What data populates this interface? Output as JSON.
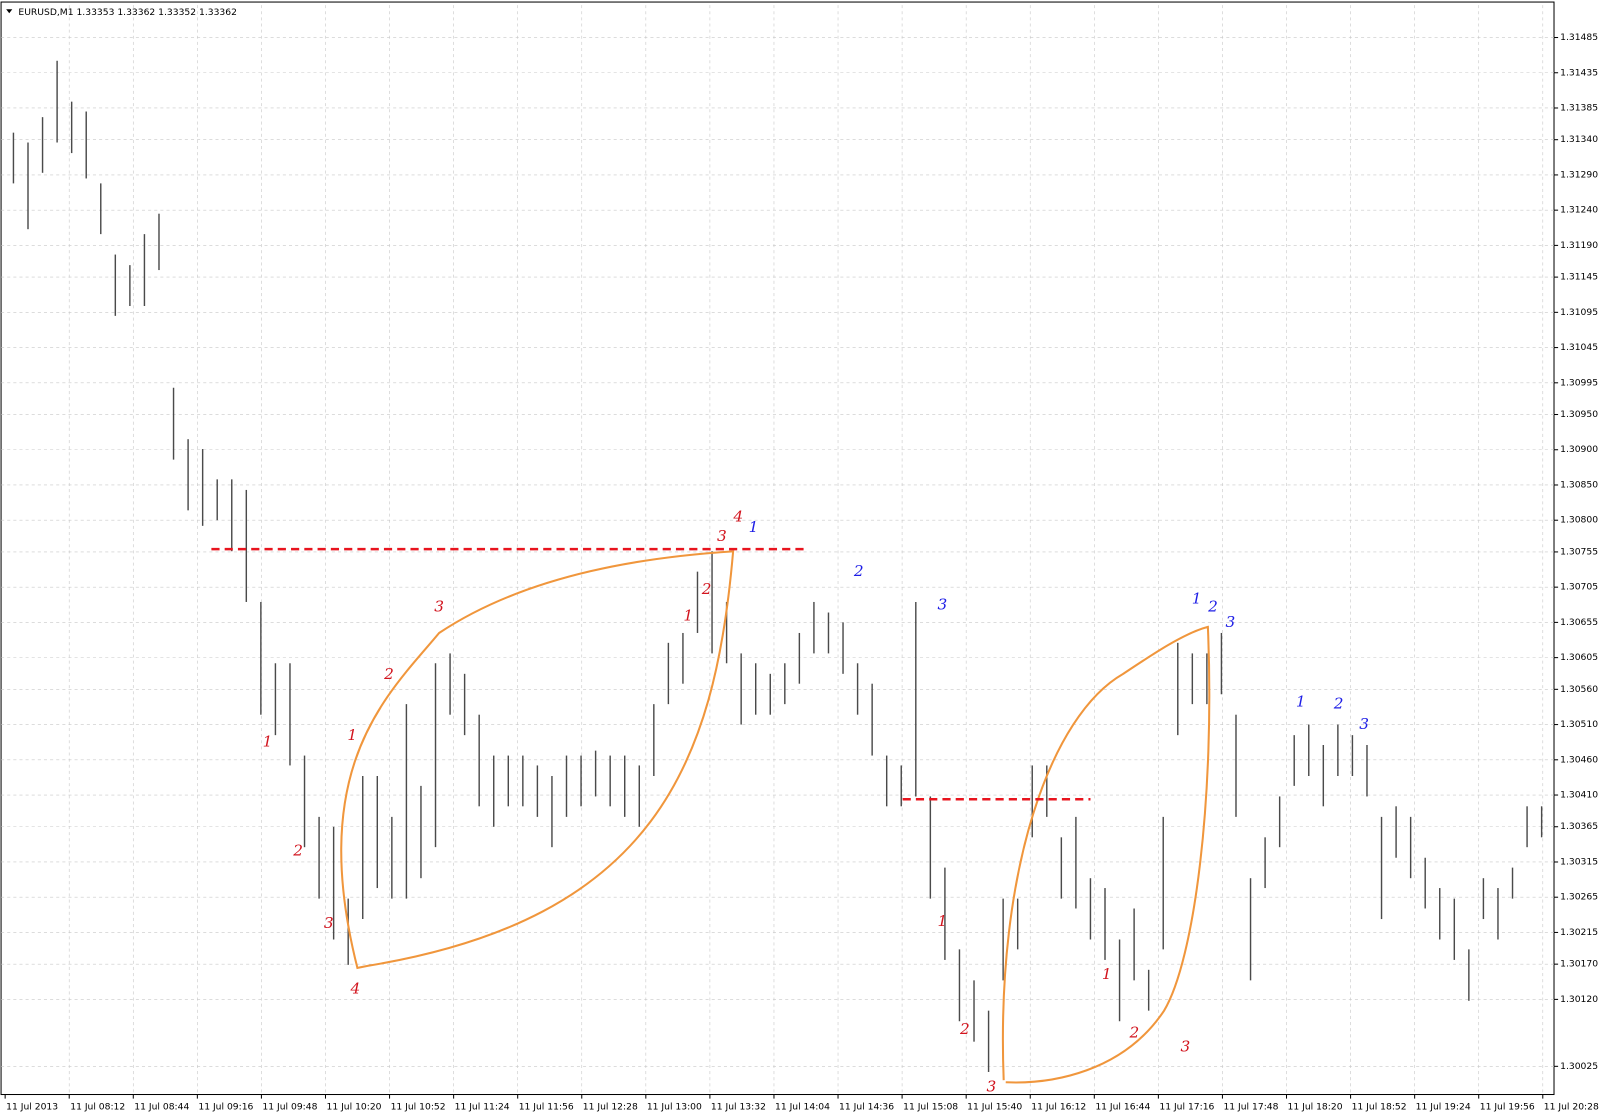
{
  "chart_data": {
    "type": "ohlc",
    "title": "EURUSD,M1  1.33353 1.33362 1.33352 1.33362",
    "color": "#4a4a4a",
    "grid": true,
    "ylim": [
      1.29985,
      1.31531
    ],
    "yticks": [
      1.31485,
      1.31435,
      1.31385,
      {
        "value": 1.3134,
        "label": "1.31340"
      },
      {
        "value": 1.3129,
        "label": "1.31290"
      },
      {
        "value": 1.3124,
        "label": "1.31240"
      },
      {
        "value": 1.3119,
        "label": "1.31190"
      },
      1.31145,
      1.31095,
      1.31045,
      1.30995,
      {
        "value": 1.3095,
        "label": "1.30950"
      },
      {
        "value": 1.309,
        "label": "1.30900"
      },
      {
        "value": 1.3085,
        "label": "1.30850"
      },
      {
        "value": 1.308,
        "label": "1.30800"
      },
      1.30755,
      1.30705,
      1.30655,
      1.30605,
      {
        "value": 1.3056,
        "label": "1.30560"
      },
      {
        "value": 1.3051,
        "label": "1.30510"
      },
      {
        "value": 1.3046,
        "label": "1.30460"
      },
      {
        "value": 1.3041,
        "label": "1.30410"
      },
      1.30365,
      1.30315,
      1.30265,
      1.30215,
      {
        "value": 1.3017,
        "label": "1.30170"
      },
      {
        "value": 1.3012,
        "label": "1.30120"
      },
      1.30025
    ],
    "xticks": [
      "11 Jul 2013",
      "11 Jul 08:12",
      "11 Jul 08:44",
      "11 Jul 09:16",
      "11 Jul 09:48",
      "11 Jul 10:20",
      "11 Jul 10:52",
      "11 Jul 11:24",
      "11 Jul 11:56",
      "11 Jul 12:28",
      "11 Jul 13:00",
      "11 Jul 13:32",
      "11 Jul 14:04",
      "11 Jul 14:36",
      "11 Jul 15:08",
      "11 Jul 15:40",
      "11 Jul 16:12",
      "11 Jul 16:44",
      "11 Jul 17:16",
      "11 Jul 17:48",
      "11 Jul 18:20",
      "11 Jul 18:52",
      "11 Jul 19:24",
      "11 Jul 19:56",
      "11 Jul 20:28"
    ],
    "high": [
      1.3135,
      1.31336,
      1.31372,
      1.31452,
      1.31394,
      1.3138,
      1.31278,
      1.31177,
      1.31162,
      1.31206,
      1.31235,
      1.30988,
      1.30915,
      1.30901,
      1.30858,
      1.30858,
      1.30843,
      1.30684,
      1.30597,
      1.30597,
      1.30466,
      1.30379,
      1.30365,
      1.30263,
      1.30437,
      1.30437,
      1.30379,
      1.30539,
      1.30423,
      1.30597,
      1.30611,
      1.30582,
      1.30524,
      1.30466,
      1.30466,
      1.30466,
      1.30452,
      1.30437,
      1.30466,
      1.30466,
      1.30473,
      1.30466,
      1.30466,
      1.30452,
      1.30539,
      1.30626,
      1.3064,
      1.30727,
      1.30756,
      1.30684,
      1.30611,
      1.30597,
      1.30582,
      1.30597,
      1.3064,
      1.30684,
      1.30669,
      1.30655,
      1.30597,
      1.30568,
      1.30466,
      1.30452,
      1.30684,
      1.30408,
      1.30307,
      1.30191,
      1.30147,
      1.30104,
      1.30263,
      1.30263,
      1.30452,
      1.30452,
      1.3035,
      1.30379,
      1.30292,
      1.30278,
      1.30205,
      1.30249,
      1.30162,
      1.30379,
      1.30626,
      1.30611,
      1.30611,
      1.3064,
      1.30524,
      1.30292,
      1.3035,
      1.30408,
      1.30495,
      1.3051,
      1.30481,
      1.3051,
      1.30495,
      1.30481,
      1.30379,
      1.30394,
      1.30379,
      1.30321,
      1.30278,
      1.30263,
      1.30191,
      1.30292,
      1.30278,
      1.30307,
      1.30394,
      1.30394
    ],
    "low": [
      1.31278,
      1.31213,
      1.31293,
      1.31336,
      1.31321,
      1.31285,
      1.31206,
      1.3109,
      1.31104,
      1.31104,
      1.31155,
      1.30886,
      1.30814,
      1.30792,
      1.308,
      1.30756,
      1.30684,
      1.30524,
      1.30495,
      1.30452,
      1.30336,
      1.30263,
      1.30205,
      1.30169,
      1.30234,
      1.30278,
      1.30263,
      1.30263,
      1.30292,
      1.30336,
      1.30524,
      1.30495,
      1.30394,
      1.30365,
      1.30394,
      1.30394,
      1.30379,
      1.30336,
      1.30379,
      1.30394,
      1.30408,
      1.30394,
      1.30379,
      1.30365,
      1.30437,
      1.30539,
      1.30568,
      1.3064,
      1.30611,
      1.30597,
      1.3051,
      1.30524,
      1.30524,
      1.30539,
      1.30568,
      1.30611,
      1.30611,
      1.30582,
      1.30524,
      1.30466,
      1.30394,
      1.30394,
      1.30408,
      1.30263,
      1.30176,
      1.30089,
      1.3006,
      1.30017,
      1.30147,
      1.30191,
      1.3035,
      1.30379,
      1.30263,
      1.30249,
      1.30205,
      1.30176,
      1.30089,
      1.30147,
      1.30104,
      1.30191,
      1.30495,
      1.30539,
      1.30539,
      1.30553,
      1.30379,
      1.30147,
      1.30278,
      1.30336,
      1.30423,
      1.30437,
      1.30394,
      1.30437,
      1.30437,
      1.30408,
      1.30234,
      1.30321,
      1.30292,
      1.30249,
      1.30205,
      1.30176,
      1.30118,
      1.30234,
      1.30205,
      1.30263,
      1.30336,
      1.3035
    ],
    "levels": [
      {
        "value": 1.30759,
        "color": "#e8141e"
      },
      {
        "value": 1.30404,
        "color": "#e8141e"
      }
    ],
    "annotations": [
      {
        "text": "1",
        "color": "#d2141e"
      },
      {
        "text": "2",
        "color": "#d2141e"
      },
      {
        "text": "3",
        "color": "#d2141e"
      },
      {
        "text": "4",
        "color": "#d2141e"
      },
      {
        "text": "1",
        "color": "#d2141e"
      },
      {
        "text": "2",
        "color": "#d2141e"
      },
      {
        "text": "3",
        "color": "#d2141e"
      },
      {
        "text": "1",
        "color": "#d2141e"
      },
      {
        "text": "2",
        "color": "#d2141e"
      },
      {
        "text": "3",
        "color": "#d2141e"
      },
      {
        "text": "4",
        "color": "#d2141e"
      },
      {
        "text": "1",
        "color": "#1e1ee6"
      },
      {
        "text": "2",
        "color": "#1e1ee6"
      },
      {
        "text": "3",
        "color": "#1e1ee6"
      },
      {
        "text": "1",
        "color": "#d2141e"
      },
      {
        "text": "2",
        "color": "#d2141e"
      },
      {
        "text": "3",
        "color": "#d2141e"
      },
      {
        "text": "1",
        "color": "#d2141e"
      },
      {
        "text": "2",
        "color": "#d2141e"
      },
      {
        "text": "3",
        "color": "#d2141e"
      },
      {
        "text": "1",
        "color": "#1e1ee6"
      },
      {
        "text": "2",
        "color": "#1e1ee6"
      },
      {
        "text": "3",
        "color": "#1e1ee6"
      },
      {
        "text": "1",
        "color": "#1e1ee6"
      },
      {
        "text": "2",
        "color": "#1e1ee6"
      },
      {
        "text": "3",
        "color": "#1e1ee6"
      }
    ]
  }
}
